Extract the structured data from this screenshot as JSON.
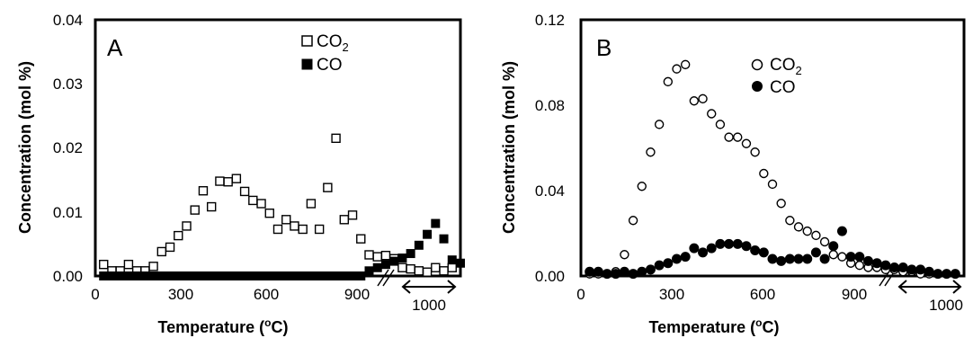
{
  "chart_data": [
    {
      "type": "scatter",
      "panel_label": "A",
      "xlabel_main": "Temperature (",
      "xlabel_sup": "o",
      "xlabel_end": "C)",
      "ylabel": "Concentration (mol %)",
      "ylim": [
        0,
        0.04
      ],
      "yticks": [
        "0.00",
        "0.01",
        "0.02",
        "0.03",
        "0.04"
      ],
      "xticks": [
        "0",
        "300",
        "600",
        "900"
      ],
      "xlim": [
        0,
        1100
      ],
      "break_label": "1000",
      "grid": false,
      "legend_position": "top-center",
      "series": [
        {
          "name": "CO",
          "name_sub": "2",
          "marker": "open-square",
          "color": "#000000",
          "x": [
            25,
            50,
            75,
            100,
            125,
            150,
            175,
            200,
            225,
            250,
            275,
            300,
            325,
            350,
            375,
            400,
            425,
            450,
            475,
            500,
            525,
            550,
            575,
            600,
            625,
            650,
            675,
            700,
            725,
            750,
            775,
            800,
            825,
            850,
            875,
            900,
            925,
            950,
            975,
            1000,
            1025,
            1050,
            1075
          ],
          "y": [
            0.0018,
            0.0008,
            0.0008,
            0.0018,
            0.0008,
            0.0008,
            0.0015,
            0.0038,
            0.0045,
            0.0063,
            0.0078,
            0.0103,
            0.0133,
            0.0108,
            0.0148,
            0.0147,
            0.0152,
            0.0132,
            0.0118,
            0.0113,
            0.0098,
            0.0073,
            0.0088,
            0.0078,
            0.0073,
            0.0113,
            0.0073,
            0.0138,
            0.0215,
            0.0088,
            0.0095,
            0.0058,
            0.0033,
            0.003,
            0.0032,
            0.0027,
            0.0013,
            0.0011,
            0.0008,
            0.0006,
            0.0013,
            0.0008,
            0.0013
          ]
        },
        {
          "name": "CO",
          "marker": "filled-square",
          "color": "#000000",
          "x": [
            25,
            50,
            75,
            100,
            125,
            150,
            175,
            200,
            225,
            250,
            275,
            300,
            325,
            350,
            375,
            400,
            425,
            450,
            475,
            500,
            525,
            550,
            575,
            600,
            625,
            650,
            675,
            700,
            725,
            750,
            775,
            800,
            825,
            850,
            875,
            900,
            925,
            950,
            975,
            1000,
            1025,
            1050,
            1075,
            1100
          ],
          "y": [
            0,
            0,
            0,
            0,
            0,
            0,
            0,
            0,
            0,
            0,
            0,
            0,
            0,
            0,
            0,
            0,
            0,
            0,
            0,
            0,
            0,
            0,
            0,
            0,
            0,
            0,
            0,
            0,
            0,
            0,
            0,
            0,
            0.0008,
            0.0013,
            0.0018,
            0.0023,
            0.0028,
            0.0035,
            0.0048,
            0.0065,
            0.0082,
            0.0058,
            0.0025,
            0.002
          ]
        }
      ]
    },
    {
      "type": "scatter",
      "panel_label": "B",
      "xlabel_main": "Temperature (",
      "xlabel_sup": "o",
      "xlabel_end": "C)",
      "ylabel": "Concentration (mol %)",
      "ylim": [
        0,
        0.12
      ],
      "yticks": [
        "0.00",
        "0.04",
        "0.08",
        "0.12"
      ],
      "xticks": [
        "0",
        "300",
        "600",
        "900"
      ],
      "xlim": [
        0,
        1100
      ],
      "break_label": "1000",
      "grid": false,
      "legend_position": "top-center",
      "series": [
        {
          "name": "CO",
          "name_sub": "2",
          "marker": "open-circle",
          "color": "#000000",
          "x": [
            25,
            50,
            75,
            100,
            125,
            150,
            175,
            200,
            225,
            250,
            275,
            300,
            325,
            350,
            375,
            400,
            425,
            450,
            475,
            500,
            525,
            550,
            575,
            600,
            625,
            650,
            675,
            700,
            725,
            750,
            775,
            800,
            825,
            850,
            875,
            900,
            925,
            950,
            975,
            1000,
            1025,
            1050,
            1075
          ],
          "y": [
            0.001,
            0.001,
            0.001,
            0.002,
            0.01,
            0.026,
            0.042,
            0.058,
            0.071,
            0.091,
            0.097,
            0.099,
            0.082,
            0.083,
            0.076,
            0.071,
            0.065,
            0.065,
            0.062,
            0.058,
            0.048,
            0.043,
            0.034,
            0.026,
            0.023,
            0.021,
            0.019,
            0.016,
            0.01,
            0.009,
            0.006,
            0.005,
            0.004,
            0.004,
            0.003,
            0.003,
            0.002,
            0.002,
            0.001,
            0.001,
            0.001,
            0.001,
            0.001
          ]
        },
        {
          "name": "CO",
          "marker": "filled-circle",
          "color": "#000000",
          "x": [
            25,
            50,
            75,
            100,
            125,
            150,
            175,
            200,
            225,
            250,
            275,
            300,
            325,
            350,
            375,
            400,
            425,
            450,
            475,
            500,
            525,
            550,
            575,
            600,
            625,
            650,
            675,
            700,
            725,
            750,
            775,
            800,
            825,
            850,
            875,
            900,
            925,
            950,
            975,
            1000,
            1025,
            1050,
            1075
          ],
          "y": [
            0.002,
            0.002,
            0.001,
            0.001,
            0.002,
            0.001,
            0.002,
            0.003,
            0.005,
            0.006,
            0.008,
            0.009,
            0.013,
            0.011,
            0.013,
            0.015,
            0.015,
            0.015,
            0.014,
            0.012,
            0.011,
            0.008,
            0.007,
            0.008,
            0.008,
            0.008,
            0.011,
            0.008,
            0.014,
            0.021,
            0.009,
            0.009,
            0.007,
            0.006,
            0.005,
            0.004,
            0.004,
            0.003,
            0.003,
            0.002,
            0.001,
            0.001,
            0.001
          ]
        }
      ]
    }
  ]
}
